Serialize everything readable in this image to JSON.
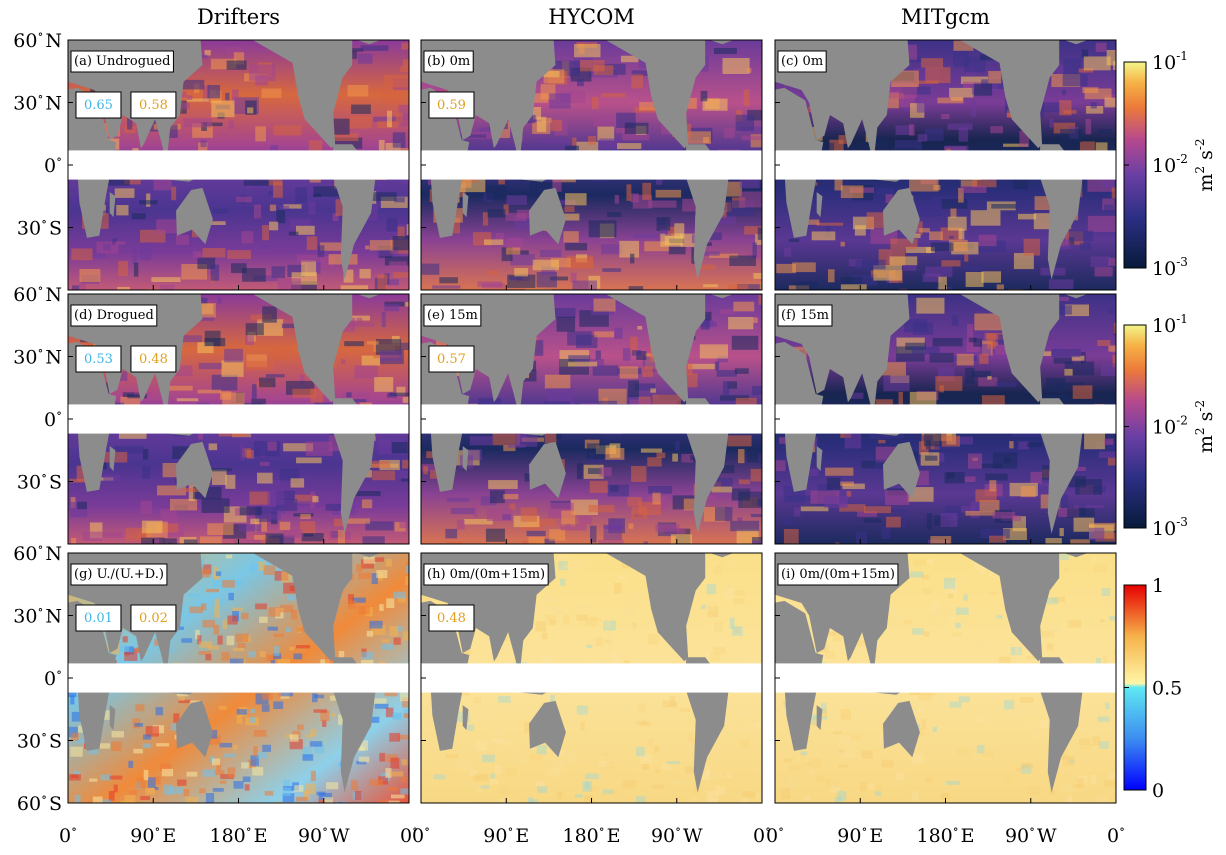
{
  "figure": {
    "column_titles": [
      "Drifters",
      "HYCOM",
      "MITgcm"
    ],
    "lat_ticks": [
      {
        "label": "60",
        "sup": "∘",
        "hem": "N"
      },
      {
        "label": "30",
        "sup": "∘",
        "hem": "N"
      },
      {
        "label": "0",
        "sup": "∘",
        "hem": ""
      },
      {
        "label": "30",
        "sup": "∘",
        "hem": "S"
      },
      {
        "label": "60",
        "sup": "∘",
        "hem": "S"
      }
    ],
    "lon_ticks": [
      {
        "label": "0",
        "sup": "∘",
        "hem": ""
      },
      {
        "label": "90",
        "sup": "∘",
        "hem": "E"
      },
      {
        "label": "180",
        "sup": "∘",
        "hem": "E"
      },
      {
        "label": "90",
        "sup": "∘",
        "hem": "W"
      },
      {
        "label": "0",
        "sup": "∘",
        "hem": ""
      }
    ],
    "colors": {
      "land": "#8c8c8c",
      "equator_gap": "#ffffff",
      "stat_cyan": "#3fb6e6",
      "stat_orange": "#e0a020"
    }
  },
  "chart_data": {
    "type": "heatmap",
    "xlim_deg_east": [
      0,
      360
    ],
    "ylim_deg_north": [
      -60,
      60
    ],
    "panels": [
      {
        "label": "(a) Undrogued",
        "row": 0,
        "col": 0,
        "stats": [
          {
            "value": "0.65",
            "color": "cyan"
          },
          {
            "value": "0.58",
            "color": "orange"
          }
        ]
      },
      {
        "label": "(b) 0m",
        "row": 0,
        "col": 1,
        "stats": [
          {
            "value": "0.59",
            "color": "orange"
          }
        ]
      },
      {
        "label": "(c) 0m",
        "row": 0,
        "col": 2,
        "stats": []
      },
      {
        "label": "(d) Drogued",
        "row": 1,
        "col": 0,
        "stats": [
          {
            "value": "0.53",
            "color": "cyan"
          },
          {
            "value": "0.48",
            "color": "orange"
          }
        ]
      },
      {
        "label": "(e) 15m",
        "row": 1,
        "col": 1,
        "stats": [
          {
            "value": "0.57",
            "color": "orange"
          }
        ]
      },
      {
        "label": "(f) 15m",
        "row": 1,
        "col": 2,
        "stats": []
      },
      {
        "label": "(g) U./(U.+D.)",
        "row": 2,
        "col": 0,
        "stats": [
          {
            "value": "0.01",
            "color": "cyan"
          },
          {
            "value": "0.02",
            "color": "orange"
          }
        ]
      },
      {
        "label": "(h) 0m/(0m+15m)",
        "row": 2,
        "col": 1,
        "stats": [
          {
            "value": "0.48",
            "color": "orange"
          }
        ]
      },
      {
        "label": "(i) 0m/(0m+15m)",
        "row": 2,
        "col": 2,
        "stats": []
      }
    ],
    "colorbars": [
      {
        "row": 0,
        "scale": "log",
        "range": [
          0.001,
          0.1
        ],
        "ticks": [
          {
            "base": "10",
            "exp": "-1"
          },
          {
            "base": "10",
            "exp": "-2"
          },
          {
            "base": "10",
            "exp": "-3"
          }
        ],
        "unit": {
          "m": "m",
          "two": "2",
          "s": " s",
          "neg2": "-2"
        },
        "colormap": "thermal"
      },
      {
        "row": 1,
        "scale": "log",
        "range": [
          0.001,
          0.1
        ],
        "ticks": [
          {
            "base": "10",
            "exp": "-1"
          },
          {
            "base": "10",
            "exp": "-2"
          },
          {
            "base": "10",
            "exp": "-3"
          }
        ],
        "unit": {
          "m": "m",
          "two": "2",
          "s": " s",
          "neg2": "-2"
        },
        "colormap": "thermal"
      },
      {
        "row": 2,
        "scale": "linear",
        "range": [
          0,
          1
        ],
        "ticks": [
          {
            "base": "1",
            "exp": ""
          },
          {
            "base": "0.5",
            "exp": ""
          },
          {
            "base": "0",
            "exp": ""
          }
        ],
        "unit": null,
        "colormap": "jet"
      }
    ]
  }
}
